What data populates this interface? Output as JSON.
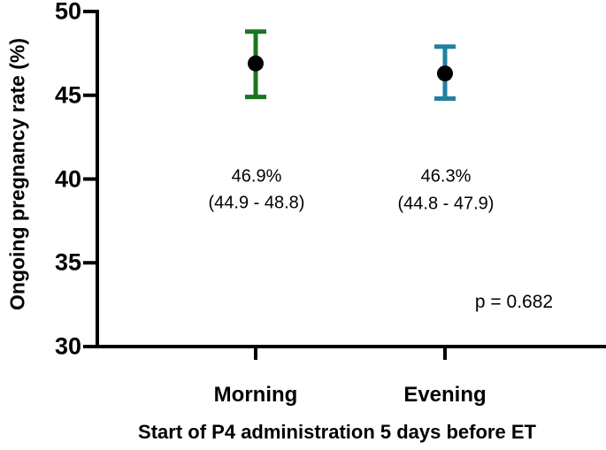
{
  "chart_data": {
    "type": "scatter",
    "categories": [
      "Morning",
      "Evening"
    ],
    "series": [
      {
        "name": "Ongoing pregnancy rate",
        "values": [
          46.9,
          46.3
        ],
        "ci_low": [
          44.9,
          44.8
        ],
        "ci_high": [
          48.8,
          47.9
        ],
        "error_bar_colors": [
          "#1b741f",
          "#1f81a0"
        ],
        "marker_color": "#000000"
      }
    ],
    "annotations": [
      {
        "value_label": "46.9%",
        "ci_label": "(44.9 - 48.8)"
      },
      {
        "value_label": "46.3%",
        "ci_label": "(44.8 - 47.9)"
      }
    ],
    "stats_label": "p = 0.682",
    "ylabel": "Ongoing pregnancy rate (%)",
    "xlabel": "Start of P4 administration 5 days before ET",
    "ylim": [
      30,
      50
    ],
    "yticks": [
      50,
      45,
      40,
      35,
      30
    ],
    "ytick_labels_top_to_bottom": [
      "50",
      "45",
      "40",
      "35",
      "30"
    ],
    "grid": false,
    "legend_position": "none",
    "axis_color": "#000000",
    "background_color": "#ffffff"
  }
}
